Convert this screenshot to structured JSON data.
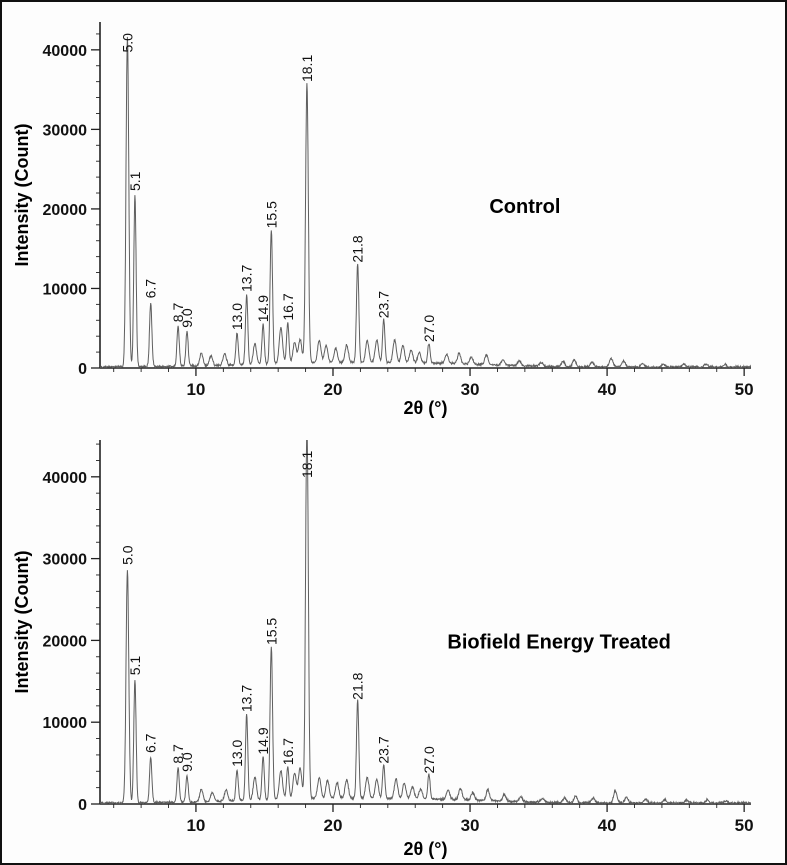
{
  "figure": {
    "background": "#fdfdfd",
    "border_color": "#111111",
    "trace_color": "#5f5f5f",
    "text_color": "#111111"
  },
  "chart_data": [
    {
      "type": "line",
      "annotation": "Control",
      "annotation_pos": {
        "x": 34.0,
        "y": 19500
      },
      "xlabel": "2θ (°)",
      "ylabel": "Intensity (Count)",
      "xlim": [
        3,
        50.5
      ],
      "ylim": [
        0,
        43500
      ],
      "x_ticks": [
        10,
        20,
        30,
        40,
        50
      ],
      "y_ticks": [
        0,
        10000,
        20000,
        30000,
        40000
      ],
      "peaks": [
        {
          "two_theta": 5.0,
          "intensity": 41500,
          "label": "5.0",
          "sigma": 0.1
        },
        {
          "two_theta": 5.1,
          "intensity": 21500,
          "label": "5.1",
          "x_draw": 5.55
        },
        {
          "two_theta": 6.7,
          "intensity": 8000,
          "label": "6.7"
        },
        {
          "two_theta": 8.7,
          "intensity": 5000,
          "label": "8.7"
        },
        {
          "two_theta": 9.0,
          "intensity": 4300,
          "label": "9.0",
          "x_draw": 9.35
        },
        {
          "two_theta": 13.0,
          "intensity": 4000,
          "label": "13.0"
        },
        {
          "two_theta": 13.7,
          "intensity": 8800,
          "label": "13.7"
        },
        {
          "two_theta": 14.9,
          "intensity": 5000,
          "label": "14.9"
        },
        {
          "two_theta": 15.5,
          "intensity": 16800,
          "label": "15.5",
          "sigma": 0.09
        },
        {
          "two_theta": 16.7,
          "intensity": 5200,
          "label": "16.7"
        },
        {
          "two_theta": 18.1,
          "intensity": 35200,
          "label": "18.1",
          "sigma": 0.1
        },
        {
          "two_theta": 21.8,
          "intensity": 12500,
          "label": "21.8"
        },
        {
          "two_theta": 23.7,
          "intensity": 5500,
          "label": "23.7"
        },
        {
          "two_theta": 27.0,
          "intensity": 2500,
          "label": "27.0"
        }
      ],
      "minor_peaks": [
        [
          10.4,
          1600
        ],
        [
          11.1,
          1200
        ],
        [
          12.1,
          1500
        ],
        [
          14.3,
          2600
        ],
        [
          16.2,
          4500
        ],
        [
          17.2,
          2600
        ],
        [
          17.6,
          3000
        ],
        [
          19.0,
          2800
        ],
        [
          19.5,
          2200
        ],
        [
          20.2,
          1800
        ],
        [
          21.0,
          2200
        ],
        [
          22.5,
          2800
        ],
        [
          23.2,
          2800
        ],
        [
          24.5,
          2900
        ],
        [
          25.1,
          2200
        ],
        [
          25.7,
          1600
        ],
        [
          26.3,
          1300
        ],
        [
          28.3,
          1100
        ],
        [
          29.2,
          1300
        ],
        [
          30.1,
          900
        ],
        [
          31.2,
          1200
        ],
        [
          32.4,
          700
        ],
        [
          33.6,
          600
        ],
        [
          35.2,
          500
        ],
        [
          36.8,
          700
        ],
        [
          37.6,
          900
        ],
        [
          38.9,
          600
        ],
        [
          40.3,
          1100
        ],
        [
          41.2,
          800
        ],
        [
          42.6,
          500
        ],
        [
          44.1,
          400
        ],
        [
          45.6,
          350
        ],
        [
          47.2,
          400
        ],
        [
          48.6,
          300
        ]
      ]
    },
    {
      "type": "line",
      "annotation": "Biofield Energy Treated",
      "annotation_pos": {
        "x": 36.5,
        "y": 19000
      },
      "xlabel": "2θ (°)",
      "ylabel": "Intensity (Count)",
      "xlim": [
        3,
        50.5
      ],
      "ylim": [
        0,
        44500
      ],
      "x_ticks": [
        10,
        20,
        30,
        40,
        50
      ],
      "y_ticks": [
        0,
        10000,
        20000,
        30000,
        40000
      ],
      "peaks": [
        {
          "two_theta": 5.0,
          "intensity": 28500,
          "label": "5.0",
          "sigma": 0.1
        },
        {
          "two_theta": 5.1,
          "intensity": 15000,
          "label": "5.1",
          "x_draw": 5.55
        },
        {
          "two_theta": 6.7,
          "intensity": 5500,
          "label": "6.7"
        },
        {
          "two_theta": 8.7,
          "intensity": 4200,
          "label": "8.7"
        },
        {
          "two_theta": 9.0,
          "intensity": 3200,
          "label": "9.0",
          "x_draw": 9.35
        },
        {
          "two_theta": 13.0,
          "intensity": 3800,
          "label": "13.0"
        },
        {
          "two_theta": 13.7,
          "intensity": 10500,
          "label": "13.7"
        },
        {
          "two_theta": 14.9,
          "intensity": 5300,
          "label": "14.9"
        },
        {
          "two_theta": 15.5,
          "intensity": 18700,
          "label": "15.5",
          "sigma": 0.09
        },
        {
          "two_theta": 16.7,
          "intensity": 4000,
          "label": "16.7"
        },
        {
          "two_theta": 18.1,
          "intensity": 46500,
          "label": "18.1",
          "sigma": 0.1
        },
        {
          "two_theta": 21.8,
          "intensity": 12000,
          "label": "21.8"
        },
        {
          "two_theta": 23.7,
          "intensity": 4200,
          "label": "23.7"
        },
        {
          "two_theta": 27.0,
          "intensity": 3000,
          "label": "27.0"
        }
      ],
      "minor_peaks": [
        [
          10.4,
          1500
        ],
        [
          11.2,
          1100
        ],
        [
          12.2,
          1400
        ],
        [
          14.3,
          2800
        ],
        [
          16.2,
          3500
        ],
        [
          17.2,
          3200
        ],
        [
          17.6,
          3800
        ],
        [
          19.0,
          2600
        ],
        [
          19.6,
          2200
        ],
        [
          20.3,
          1900
        ],
        [
          21.0,
          2300
        ],
        [
          22.5,
          2600
        ],
        [
          23.2,
          2300
        ],
        [
          24.6,
          2400
        ],
        [
          25.2,
          1900
        ],
        [
          25.8,
          1500
        ],
        [
          26.4,
          1200
        ],
        [
          28.4,
          1100
        ],
        [
          29.3,
          1400
        ],
        [
          30.2,
          900
        ],
        [
          31.3,
          1300
        ],
        [
          32.5,
          800
        ],
        [
          33.7,
          600
        ],
        [
          35.3,
          500
        ],
        [
          36.9,
          600
        ],
        [
          37.7,
          800
        ],
        [
          39.0,
          600
        ],
        [
          40.6,
          1500
        ],
        [
          41.4,
          700
        ],
        [
          42.8,
          500
        ],
        [
          44.2,
          400
        ],
        [
          45.8,
          350
        ],
        [
          47.3,
          400
        ],
        [
          48.7,
          300
        ]
      ]
    }
  ]
}
